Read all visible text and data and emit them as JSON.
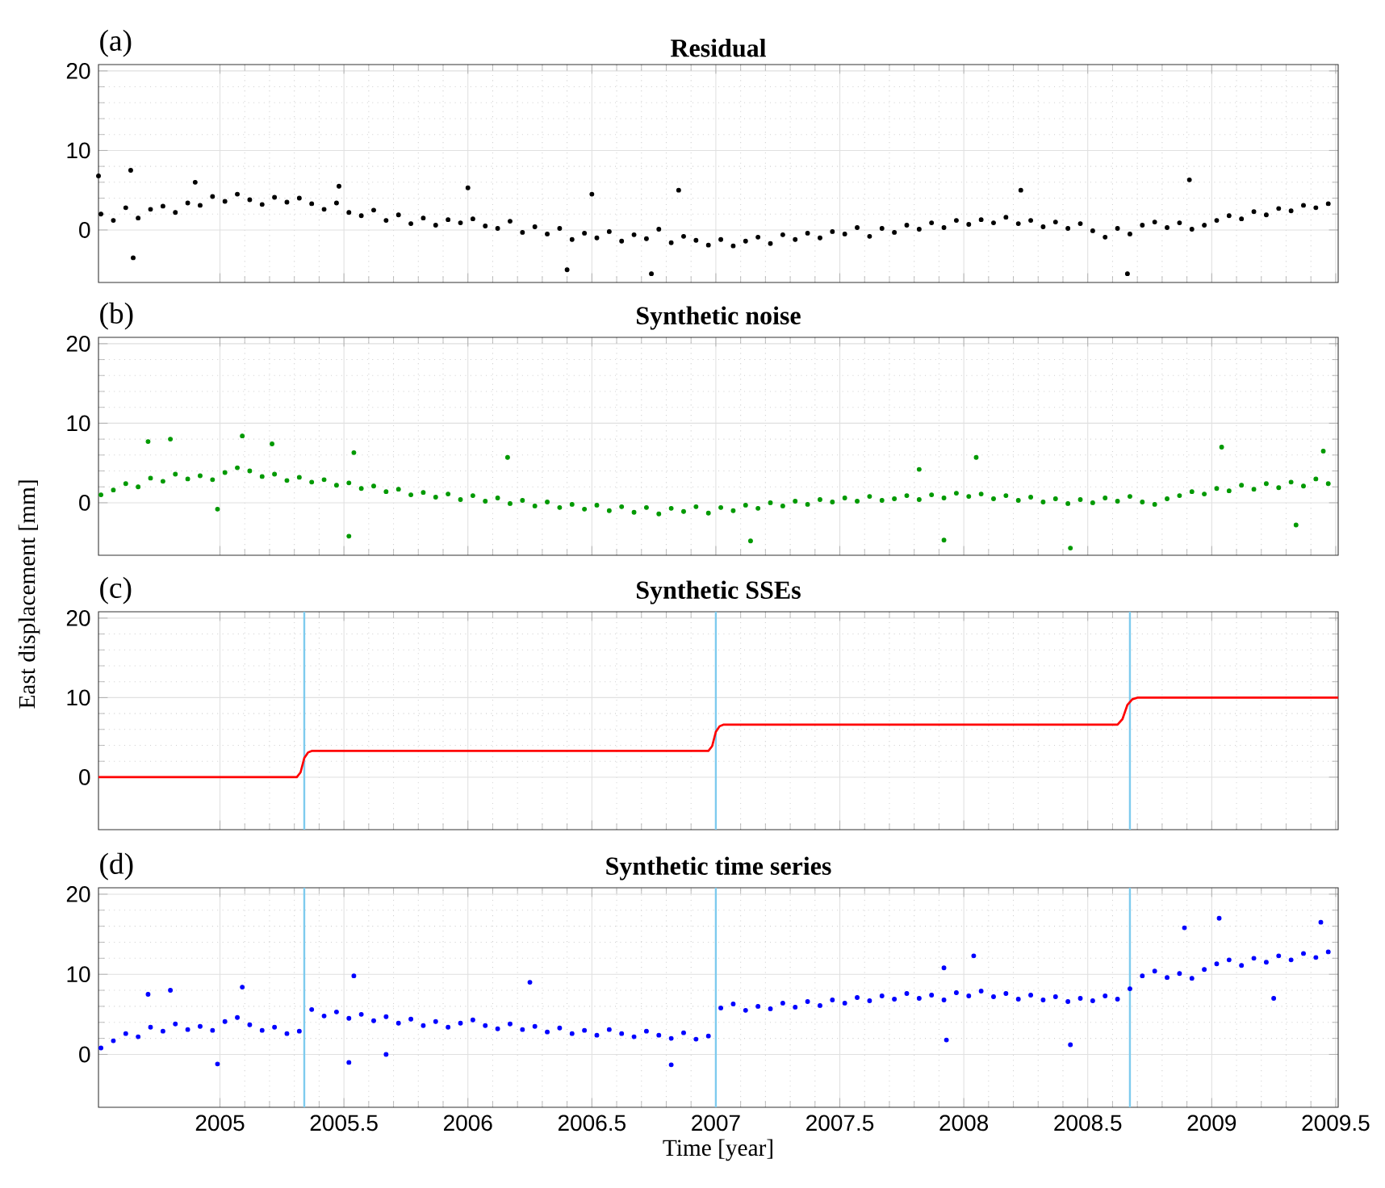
{
  "chart_data": [
    {
      "type": "scatter",
      "title": "Residual",
      "annotations": [
        "(a)"
      ],
      "color": "#000000",
      "marker": "circle",
      "grid": true,
      "tick_labels": "y",
      "xlim": [
        2004.51,
        2009.51
      ],
      "ylim": [
        -6.6,
        20.8
      ],
      "xticks": [
        2005,
        2005.5,
        2006,
        2006.5,
        2007,
        2007.5,
        2008,
        2008.5,
        2009,
        2009.5
      ],
      "yticks": [
        0,
        10,
        20
      ],
      "x": [
        2004.52,
        2004.57,
        2004.62,
        2004.67,
        2004.72,
        2004.77,
        2004.82,
        2004.87,
        2004.92,
        2004.97,
        2005.02,
        2005.07,
        2005.12,
        2005.17,
        2005.22,
        2005.27,
        2005.32,
        2005.37,
        2005.42,
        2005.47,
        2005.52,
        2005.57,
        2005.62,
        2005.67,
        2005.72,
        2005.77,
        2005.82,
        2005.87,
        2005.92,
        2005.97,
        2006.02,
        2006.07,
        2006.12,
        2006.17,
        2006.22,
        2006.27,
        2006.32,
        2006.37,
        2006.42,
        2006.47,
        2006.52,
        2006.57,
        2006.62,
        2006.67,
        2006.72,
        2006.77,
        2006.82,
        2006.87,
        2006.92,
        2006.97,
        2007.02,
        2007.07,
        2007.12,
        2007.17,
        2007.22,
        2007.27,
        2007.32,
        2007.37,
        2007.42,
        2007.47,
        2007.52,
        2007.57,
        2007.62,
        2007.67,
        2007.72,
        2007.77,
        2007.82,
        2007.87,
        2007.92,
        2007.97,
        2008.02,
        2008.07,
        2008.12,
        2008.17,
        2008.22,
        2008.27,
        2008.32,
        2008.37,
        2008.42,
        2008.47,
        2008.52,
        2008.57,
        2008.62,
        2008.67,
        2008.72,
        2008.77,
        2008.82,
        2008.87,
        2008.92,
        2008.97,
        2009.02,
        2009.07,
        2009.12,
        2009.17,
        2009.22,
        2009.27,
        2009.32,
        2009.37,
        2009.42,
        2009.47,
        2004.51,
        2004.64,
        2004.65,
        2004.9,
        2005.48,
        2006.0,
        2006.4,
        2006.5,
        2006.74,
        2006.85,
        2008.23,
        2008.66,
        2008.91
      ],
      "values": [
        2.0,
        1.2,
        2.8,
        1.5,
        2.6,
        3.0,
        2.2,
        3.4,
        3.1,
        4.2,
        3.6,
        4.5,
        3.8,
        3.2,
        4.1,
        3.5,
        4.0,
        3.3,
        2.6,
        3.4,
        2.2,
        1.8,
        2.5,
        1.2,
        1.9,
        0.8,
        1.5,
        0.6,
        1.3,
        0.9,
        1.4,
        0.5,
        0.2,
        1.1,
        -0.3,
        0.4,
        -0.5,
        0.2,
        -1.2,
        -0.4,
        -1.0,
        -0.2,
        -1.4,
        -0.6,
        -1.1,
        0.1,
        -1.6,
        -0.8,
        -1.3,
        -1.9,
        -1.2,
        -2.0,
        -1.4,
        -0.9,
        -1.7,
        -0.6,
        -1.2,
        -0.4,
        -1.0,
        -0.2,
        -0.5,
        0.3,
        -0.8,
        0.2,
        -0.3,
        0.6,
        0.1,
        0.9,
        0.3,
        1.2,
        0.7,
        1.3,
        0.9,
        1.6,
        0.8,
        1.2,
        0.4,
        1.0,
        0.2,
        0.8,
        -0.1,
        -0.9,
        0.2,
        -0.5,
        0.6,
        1.0,
        0.3,
        0.9,
        0.1,
        0.6,
        1.2,
        1.8,
        1.4,
        2.3,
        1.9,
        2.7,
        2.4,
        3.1,
        2.8,
        3.3,
        6.8,
        7.5,
        -3.5,
        6.0,
        5.5,
        5.3,
        -5.0,
        4.5,
        -5.5,
        5.0,
        5.0,
        -5.5,
        6.3
      ]
    },
    {
      "type": "scatter",
      "title": "Synthetic noise",
      "annotations": [
        "(b)"
      ],
      "ylabel": "East displacement [mm]",
      "color": "#009900",
      "marker": "circle",
      "grid": true,
      "tick_labels": "y",
      "xlim": [
        2004.51,
        2009.51
      ],
      "ylim": [
        -6.6,
        20.8
      ],
      "xticks": [
        2005,
        2005.5,
        2006,
        2006.5,
        2007,
        2007.5,
        2008,
        2008.5,
        2009,
        2009.5
      ],
      "yticks": [
        0,
        10,
        20
      ],
      "x": [
        2004.52,
        2004.57,
        2004.62,
        2004.67,
        2004.72,
        2004.77,
        2004.82,
        2004.87,
        2004.92,
        2004.97,
        2005.02,
        2005.07,
        2005.12,
        2005.17,
        2005.22,
        2005.27,
        2005.32,
        2005.37,
        2005.42,
        2005.47,
        2005.52,
        2005.57,
        2005.62,
        2005.67,
        2005.72,
        2005.77,
        2005.82,
        2005.87,
        2005.92,
        2005.97,
        2006.02,
        2006.07,
        2006.12,
        2006.17,
        2006.22,
        2006.27,
        2006.32,
        2006.37,
        2006.42,
        2006.47,
        2006.52,
        2006.57,
        2006.62,
        2006.67,
        2006.72,
        2006.77,
        2006.82,
        2006.87,
        2006.92,
        2006.97,
        2007.02,
        2007.07,
        2007.12,
        2007.17,
        2007.22,
        2007.27,
        2007.32,
        2007.37,
        2007.42,
        2007.47,
        2007.52,
        2007.57,
        2007.62,
        2007.67,
        2007.72,
        2007.77,
        2007.82,
        2007.87,
        2007.92,
        2007.97,
        2008.02,
        2008.07,
        2008.12,
        2008.17,
        2008.22,
        2008.27,
        2008.32,
        2008.37,
        2008.42,
        2008.47,
        2008.52,
        2008.57,
        2008.62,
        2008.67,
        2008.72,
        2008.77,
        2008.82,
        2008.87,
        2008.92,
        2008.97,
        2009.02,
        2009.07,
        2009.12,
        2009.17,
        2009.22,
        2009.27,
        2009.32,
        2009.37,
        2009.42,
        2009.47,
        2004.71,
        2004.8,
        2005.09,
        2005.21,
        2004.99,
        2005.54,
        2005.52,
        2006.16,
        2007.14,
        2007.82,
        2008.05,
        2007.92,
        2008.43,
        2009.04,
        2009.45,
        2009.34
      ],
      "values": [
        1.0,
        1.6,
        2.4,
        2.0,
        3.1,
        2.7,
        3.6,
        3.0,
        3.4,
        2.9,
        3.8,
        4.4,
        4.0,
        3.3,
        3.6,
        2.8,
        3.2,
        2.6,
        2.9,
        2.2,
        2.5,
        1.8,
        2.1,
        1.4,
        1.7,
        1.0,
        1.3,
        0.7,
        1.1,
        0.4,
        0.9,
        0.2,
        0.6,
        -0.1,
        0.3,
        -0.4,
        0.1,
        -0.6,
        -0.2,
        -0.8,
        -0.3,
        -1.0,
        -0.5,
        -1.2,
        -0.6,
        -1.4,
        -0.7,
        -1.1,
        -0.5,
        -1.3,
        -0.6,
        -1.0,
        -0.3,
        -0.7,
        0.0,
        -0.4,
        0.2,
        -0.2,
        0.4,
        0.1,
        0.6,
        0.2,
        0.8,
        0.3,
        0.5,
        0.9,
        0.4,
        1.0,
        0.6,
        1.2,
        0.8,
        1.1,
        0.5,
        0.9,
        0.3,
        0.7,
        0.1,
        0.5,
        -0.1,
        0.4,
        0.0,
        0.6,
        0.2,
        0.8,
        0.1,
        -0.2,
        0.5,
        0.9,
        1.4,
        1.1,
        1.8,
        1.5,
        2.2,
        1.7,
        2.4,
        1.9,
        2.6,
        2.1,
        3.0,
        2.4,
        7.7,
        8.0,
        8.4,
        7.4,
        -0.8,
        6.3,
        -4.2,
        5.7,
        -4.8,
        4.2,
        5.7,
        -4.7,
        -5.7,
        7.0,
        6.5,
        -2.8
      ]
    },
    {
      "type": "line",
      "title": "Synthetic SSEs",
      "annotations": [
        "(c)"
      ],
      "color": "#ff0000",
      "grid": true,
      "tick_labels": "y",
      "xlim": [
        2004.51,
        2009.51
      ],
      "ylim": [
        -6.6,
        20.8
      ],
      "xticks": [
        2005,
        2005.5,
        2006,
        2006.5,
        2007,
        2007.5,
        2008,
        2008.5,
        2009,
        2009.5
      ],
      "yticks": [
        0,
        10,
        20
      ],
      "ref_lines": [
        {
          "axis": "x",
          "value": 2005.34,
          "color": "#7ecbee"
        },
        {
          "axis": "x",
          "value": 2007.0,
          "color": "#7ecbee"
        },
        {
          "axis": "x",
          "value": 2008.67,
          "color": "#7ecbee"
        }
      ],
      "x": [
        2004.51,
        2005.31,
        2005.325,
        2005.34,
        2005.355,
        2005.37,
        2006.97,
        2006.985,
        2007.0,
        2007.015,
        2007.03,
        2008.62,
        2008.64,
        2008.66,
        2008.68,
        2008.7,
        2009.51
      ],
      "values": [
        0,
        0,
        0.6,
        2.4,
        3.1,
        3.3,
        3.3,
        3.9,
        5.7,
        6.4,
        6.6,
        6.6,
        7.3,
        9.1,
        9.8,
        10.0,
        10.0
      ]
    },
    {
      "type": "scatter",
      "title": "Synthetic time series",
      "annotations": [
        "(d)"
      ],
      "xlabel": "Time [year]",
      "color": "#0000ff",
      "marker": "circle",
      "grid": true,
      "xlim": [
        2004.51,
        2009.51
      ],
      "ylim": [
        -6.6,
        20.8
      ],
      "xticks": [
        2005,
        2005.5,
        2006,
        2006.5,
        2007,
        2007.5,
        2008,
        2008.5,
        2009,
        2009.5
      ],
      "yticks": [
        0,
        10,
        20
      ],
      "ref_lines": [
        {
          "axis": "x",
          "value": 2005.34,
          "color": "#7ecbee"
        },
        {
          "axis": "x",
          "value": 2007.0,
          "color": "#7ecbee"
        },
        {
          "axis": "x",
          "value": 2008.67,
          "color": "#7ecbee"
        }
      ],
      "x": [
        2004.52,
        2004.57,
        2004.62,
        2004.67,
        2004.72,
        2004.77,
        2004.82,
        2004.87,
        2004.92,
        2004.97,
        2005.02,
        2005.07,
        2005.12,
        2005.17,
        2005.22,
        2005.27,
        2005.32,
        2005.37,
        2005.42,
        2005.47,
        2005.52,
        2005.57,
        2005.62,
        2005.67,
        2005.72,
        2005.77,
        2005.82,
        2005.87,
        2005.92,
        2005.97,
        2006.02,
        2006.07,
        2006.12,
        2006.17,
        2006.22,
        2006.27,
        2006.32,
        2006.37,
        2006.42,
        2006.47,
        2006.52,
        2006.57,
        2006.62,
        2006.67,
        2006.72,
        2006.77,
        2006.82,
        2006.87,
        2006.92,
        2006.97,
        2007.02,
        2007.07,
        2007.12,
        2007.17,
        2007.22,
        2007.27,
        2007.32,
        2007.37,
        2007.42,
        2007.47,
        2007.52,
        2007.57,
        2007.62,
        2007.67,
        2007.72,
        2007.77,
        2007.82,
        2007.87,
        2007.92,
        2007.97,
        2008.02,
        2008.07,
        2008.12,
        2008.17,
        2008.22,
        2008.27,
        2008.32,
        2008.37,
        2008.42,
        2008.47,
        2008.52,
        2008.57,
        2008.62,
        2008.67,
        2008.72,
        2008.77,
        2008.82,
        2008.87,
        2008.92,
        2008.97,
        2009.02,
        2009.07,
        2009.12,
        2009.17,
        2009.22,
        2009.27,
        2009.32,
        2009.37,
        2009.42,
        2009.47,
        2004.71,
        2004.8,
        2004.99,
        2005.09,
        2005.54,
        2005.52,
        2005.67,
        2006.25,
        2007.92,
        2007.93,
        2008.04,
        2008.43,
        2009.03,
        2008.89,
        2009.25,
        2009.44,
        2006.82
      ],
      "values": [
        0.8,
        1.7,
        2.6,
        2.2,
        3.4,
        2.9,
        3.8,
        3.1,
        3.5,
        3.0,
        4.1,
        4.6,
        3.7,
        3.0,
        3.4,
        2.6,
        2.9,
        5.6,
        4.8,
        5.3,
        4.5,
        5.0,
        4.2,
        4.7,
        3.9,
        4.4,
        3.6,
        4.1,
        3.4,
        3.9,
        4.3,
        3.6,
        3.2,
        3.8,
        3.1,
        3.5,
        2.8,
        3.3,
        2.6,
        3.0,
        2.4,
        3.1,
        2.6,
        2.2,
        2.9,
        2.4,
        2.0,
        2.7,
        1.9,
        2.3,
        5.8,
        6.3,
        5.5,
        6.0,
        5.7,
        6.4,
        5.9,
        6.6,
        6.1,
        6.8,
        6.4,
        7.1,
        6.7,
        7.3,
        6.9,
        7.6,
        7.0,
        7.4,
        6.8,
        7.7,
        7.3,
        7.9,
        7.2,
        7.6,
        6.9,
        7.4,
        6.8,
        7.2,
        6.6,
        7.0,
        6.7,
        7.3,
        6.9,
        8.2,
        9.8,
        10.4,
        9.6,
        10.1,
        9.5,
        10.6,
        11.3,
        11.8,
        11.1,
        12.0,
        11.5,
        12.3,
        11.8,
        12.6,
        12.1,
        12.8,
        7.5,
        8.0,
        -1.2,
        8.4,
        9.8,
        -1.0,
        0.0,
        9.0,
        10.8,
        1.8,
        12.3,
        1.2,
        17.0,
        15.8,
        7.0,
        16.5,
        -1.3
      ]
    }
  ]
}
